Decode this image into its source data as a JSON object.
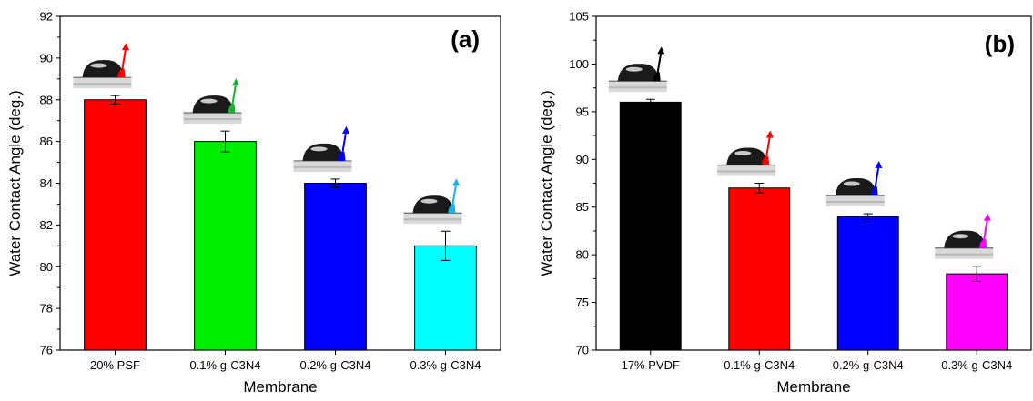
{
  "chart_data": [
    {
      "type": "bar",
      "panel_label": "(a)",
      "categories": [
        "20% PSF",
        "0.1%  g-C3N4",
        "0.2%  g-C3N4",
        "0.3% g-C3N4"
      ],
      "values": [
        88.0,
        86.0,
        84.0,
        81.0
      ],
      "errors": [
        0.2,
        0.5,
        0.2,
        0.7
      ],
      "colors": [
        "#ff0000",
        "#00ee00",
        "#0000ff",
        "#00ffff"
      ],
      "arrow_colors": [
        "#ff0000",
        "#18b030",
        "#0000ff",
        "#1ab0e8"
      ],
      "xlabel": "Membrane",
      "ylabel": "Water Contact Angle (deg.)",
      "ylim": [
        76,
        92
      ],
      "yticks": [
        76,
        78,
        80,
        82,
        84,
        86,
        88,
        90,
        92
      ],
      "grid": false,
      "legend": "none"
    },
    {
      "type": "bar",
      "panel_label": "(b)",
      "categories": [
        "17% PVDF",
        "0.1%  g-C3N4",
        "0.2%  g-C3N4",
        "0.3% g-C3N4"
      ],
      "values": [
        96.0,
        87.0,
        84.0,
        78.0
      ],
      "errors": [
        0.3,
        0.5,
        0.3,
        0.8
      ],
      "colors": [
        "#000000",
        "#ff0000",
        "#0000ff",
        "#ff00ff"
      ],
      "arrow_colors": [
        "#000000",
        "#ff0000",
        "#0000ff",
        "#ff00ff"
      ],
      "xlabel": "Membrane",
      "ylabel": "Water Contact Angle (deg.)",
      "ylim": [
        70,
        105
      ],
      "yticks": [
        70,
        75,
        80,
        85,
        90,
        95,
        100,
        105
      ],
      "grid": false,
      "legend": "none"
    }
  ]
}
